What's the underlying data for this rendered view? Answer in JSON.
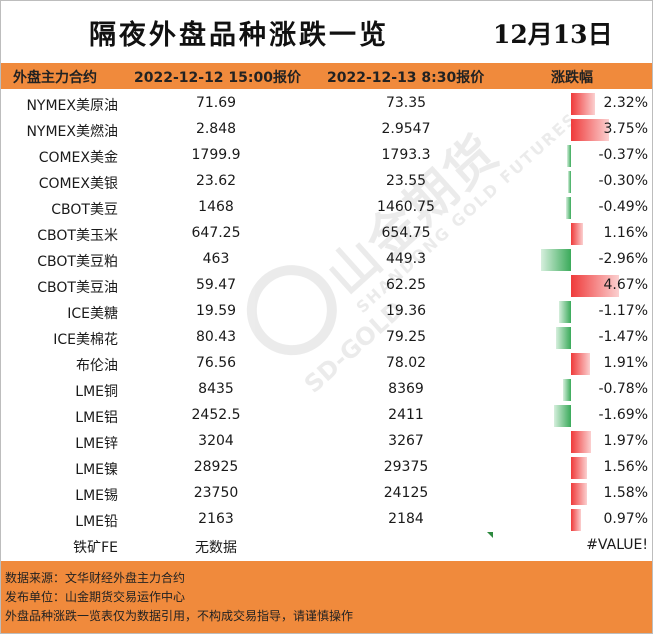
{
  "header": {
    "title": "隔夜外盘品种涨跌一览",
    "date": "12月13日"
  },
  "columns": {
    "name": "外盘主力合约",
    "price1": "2022-12-12 15:00报价",
    "price2": "2022-12-13 8:30报价",
    "change": "涨跌幅"
  },
  "rows": [
    {
      "name": "NYMEX美原油",
      "p1": "71.69",
      "p2": "73.35",
      "chg": "2.32%",
      "pct": 2.32
    },
    {
      "name": "NYMEX美燃油",
      "p1": "2.848",
      "p2": "2.9547",
      "chg": "3.75%",
      "pct": 3.75
    },
    {
      "name": "COMEX美金",
      "p1": "1799.9",
      "p2": "1793.3",
      "chg": "-0.37%",
      "pct": -0.37
    },
    {
      "name": "COMEX美银",
      "p1": "23.62",
      "p2": "23.55",
      "chg": "-0.30%",
      "pct": -0.3
    },
    {
      "name": "CBOT美豆",
      "p1": "1468",
      "p2": "1460.75",
      "chg": "-0.49%",
      "pct": -0.49
    },
    {
      "name": "CBOT美玉米",
      "p1": "647.25",
      "p2": "654.75",
      "chg": "1.16%",
      "pct": 1.16
    },
    {
      "name": "CBOT美豆粕",
      "p1": "463",
      "p2": "449.3",
      "chg": "-2.96%",
      "pct": -2.96
    },
    {
      "name": "CBOT美豆油",
      "p1": "59.47",
      "p2": "62.25",
      "chg": "4.67%",
      "pct": 4.67
    },
    {
      "name": "ICE美糖",
      "p1": "19.59",
      "p2": "19.36",
      "chg": "-1.17%",
      "pct": -1.17
    },
    {
      "name": "ICE美棉花",
      "p1": "80.43",
      "p2": "79.25",
      "chg": "-1.47%",
      "pct": -1.47
    },
    {
      "name": "布伦油",
      "p1": "76.56",
      "p2": "78.02",
      "chg": "1.91%",
      "pct": 1.91
    },
    {
      "name": "LME铜",
      "p1": "8435",
      "p2": "8369",
      "chg": "-0.78%",
      "pct": -0.78
    },
    {
      "name": "LME铝",
      "p1": "2452.5",
      "p2": "2411",
      "chg": "-1.69%",
      "pct": -1.69
    },
    {
      "name": "LME锌",
      "p1": "3204",
      "p2": "3267",
      "chg": "1.97%",
      "pct": 1.97
    },
    {
      "name": "LME镍",
      "p1": "28925",
      "p2": "29375",
      "chg": "1.56%",
      "pct": 1.56
    },
    {
      "name": "LME锡",
      "p1": "23750",
      "p2": "24125",
      "chg": "1.58%",
      "pct": 1.58
    },
    {
      "name": "LME铅",
      "p1": "2163",
      "p2": "2184",
      "chg": "0.97%",
      "pct": 0.97
    },
    {
      "name": "铁矿FE",
      "p1": "无数据",
      "p2": "",
      "chg": "#VALUE!",
      "pct": null
    }
  ],
  "watermark": {
    "text": "山金期货",
    "sub": "SHANDONG GOLD FUTURES",
    "brand": "SD-GOLD"
  },
  "colors": {
    "accent": "#f08a3c",
    "up": "#ef3a3a",
    "down": "#3aaa5a"
  },
  "footer": {
    "line1": "数据来源：文华财经外盘主力合约",
    "line2": "发布单位：山金期货交易运作中心",
    "line3": "外盘品种涨跌一览表仅为数据引用，不构成交易指导，请谨慎操作"
  }
}
